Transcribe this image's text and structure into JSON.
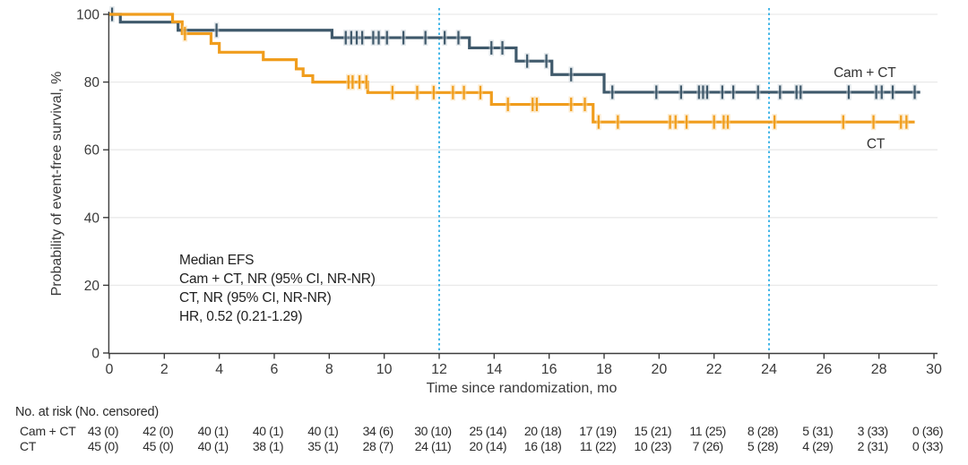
{
  "chart_data": {
    "type": "line",
    "variant": "kaplan-meier-step",
    "title": "",
    "xlabel": "Time since randomization, mo",
    "ylabel": "Probability of event-free survival, %",
    "xlim": [
      0,
      30
    ],
    "ylim": [
      0,
      100
    ],
    "xticks": [
      0,
      2,
      4,
      6,
      8,
      10,
      12,
      14,
      16,
      18,
      20,
      22,
      24,
      26,
      28,
      30
    ],
    "yticks": [
      0,
      20,
      40,
      60,
      80,
      100
    ],
    "grid": {
      "y_values": [
        20,
        40,
        60,
        80,
        100
      ],
      "color": "#E9E9E9"
    },
    "reference_vlines": {
      "x_values": [
        12,
        24
      ],
      "style": "dotted",
      "color": "#45B7E8"
    },
    "annotation": {
      "lines": [
        "Median EFS",
        "Cam + CT, NR (95% CI, NR-NR)",
        "CT, NR (95% CI, NR-NR)",
        "HR, 0.52 (0.21-1.29)"
      ]
    },
    "series": [
      {
        "name": "Cam + CT",
        "color": "#3F596B",
        "halo": "#C8D2D9",
        "label_xy": [
          26.35,
          81.5
        ],
        "steps": [
          [
            0,
            100
          ],
          [
            0.4,
            97.7
          ],
          [
            2.5,
            95.3
          ],
          [
            8.1,
            93.1
          ],
          [
            13.1,
            90.1
          ],
          [
            14.8,
            86.2
          ],
          [
            16.1,
            82.2
          ],
          [
            18.0,
            77.0
          ],
          [
            29.5,
            77.0
          ]
        ],
        "censors": [
          [
            0.1,
            100
          ],
          [
            3.9,
            95.3
          ],
          [
            8.6,
            93.1
          ],
          [
            8.8,
            93.1
          ],
          [
            9.0,
            93.1
          ],
          [
            9.2,
            93.1
          ],
          [
            9.6,
            93.1
          ],
          [
            9.8,
            93.1
          ],
          [
            10.1,
            93.1
          ],
          [
            10.7,
            93.1
          ],
          [
            11.5,
            93.1
          ],
          [
            12.2,
            93.1
          ],
          [
            12.7,
            93.1
          ],
          [
            13.9,
            90.1
          ],
          [
            14.3,
            90.1
          ],
          [
            15.2,
            86.2
          ],
          [
            15.9,
            86.2
          ],
          [
            16.8,
            82.2
          ],
          [
            18.3,
            77.0
          ],
          [
            19.9,
            77.0
          ],
          [
            20.8,
            77.0
          ],
          [
            21.45,
            77.0
          ],
          [
            21.6,
            77.0
          ],
          [
            21.75,
            77.0
          ],
          [
            22.3,
            77.0
          ],
          [
            22.7,
            77.0
          ],
          [
            23.6,
            77.0
          ],
          [
            24.4,
            77.0
          ],
          [
            25.0,
            77.0
          ],
          [
            25.15,
            77.0
          ],
          [
            26.9,
            77.0
          ],
          [
            27.9,
            77.0
          ],
          [
            28.1,
            77.0
          ],
          [
            28.5,
            77.0
          ],
          [
            29.3,
            77.0
          ]
        ]
      },
      {
        "name": "CT",
        "color": "#F09D1D",
        "halo": "#FAD9A0",
        "label_xy": [
          27.55,
          60.5
        ],
        "steps": [
          [
            0,
            100
          ],
          [
            2.3,
            97.8
          ],
          [
            2.65,
            94.3
          ],
          [
            3.7,
            91.4
          ],
          [
            4.0,
            88.8
          ],
          [
            5.6,
            86.6
          ],
          [
            6.8,
            83.9
          ],
          [
            7.05,
            81.9
          ],
          [
            7.4,
            80.0
          ],
          [
            9.4,
            76.9
          ],
          [
            13.9,
            73.4
          ],
          [
            17.6,
            68.2
          ],
          [
            29.3,
            68.2
          ]
        ],
        "censors": [
          [
            2.75,
            94.3
          ],
          [
            8.7,
            80.0
          ],
          [
            8.85,
            80.0
          ],
          [
            9.1,
            80.0
          ],
          [
            9.35,
            80.0
          ],
          [
            10.3,
            76.9
          ],
          [
            11.2,
            76.9
          ],
          [
            11.8,
            76.9
          ],
          [
            12.5,
            76.9
          ],
          [
            12.9,
            76.9
          ],
          [
            13.5,
            76.9
          ],
          [
            14.5,
            73.4
          ],
          [
            15.4,
            73.4
          ],
          [
            15.55,
            73.4
          ],
          [
            16.8,
            73.4
          ],
          [
            17.3,
            73.4
          ],
          [
            17.8,
            68.2
          ],
          [
            18.5,
            68.2
          ],
          [
            20.4,
            68.2
          ],
          [
            20.6,
            68.2
          ],
          [
            21.0,
            68.2
          ],
          [
            22.0,
            68.2
          ],
          [
            22.35,
            68.2
          ],
          [
            22.5,
            68.2
          ],
          [
            24.2,
            68.2
          ],
          [
            26.7,
            68.2
          ],
          [
            27.8,
            68.2
          ],
          [
            28.8,
            68.2
          ],
          [
            29.0,
            68.2
          ]
        ]
      }
    ],
    "risk_table": {
      "header": "No. at risk (No. censored)",
      "times": [
        0,
        2,
        4,
        6,
        8,
        10,
        12,
        14,
        16,
        18,
        20,
        22,
        24,
        26,
        28,
        30
      ],
      "rows": [
        {
          "label": "Cam + CT",
          "values": [
            "43 (0)",
            "42 (0)",
            "40 (1)",
            "40 (1)",
            "40 (1)",
            "34 (6)",
            "30 (10)",
            "25 (14)",
            "20 (18)",
            "17 (19)",
            "15 (21)",
            "11 (25)",
            "8 (28)",
            "5 (31)",
            "3 (33)",
            "0 (36)"
          ]
        },
        {
          "label": "CT",
          "values": [
            "45 (0)",
            "45 (0)",
            "40 (1)",
            "38 (1)",
            "35 (1)",
            "28 (7)",
            "24 (11)",
            "20 (14)",
            "16 (18)",
            "11 (22)",
            "10 (23)",
            "7 (26)",
            "5 (28)",
            "4 (29)",
            "2 (31)",
            "0 (33)"
          ]
        }
      ]
    }
  }
}
